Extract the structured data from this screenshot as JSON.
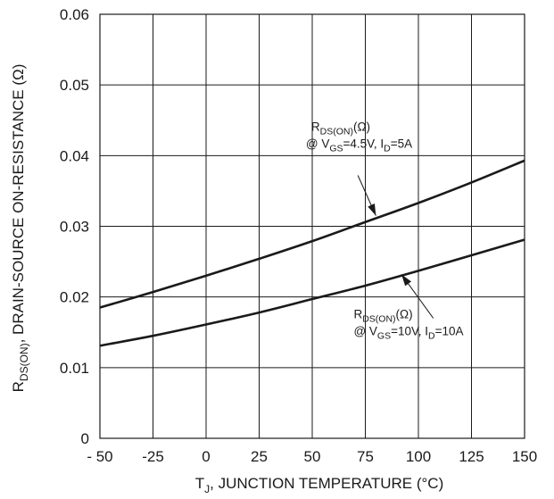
{
  "chart_data": {
    "type": "line",
    "x": [
      -50,
      -25,
      0,
      25,
      50,
      75,
      100,
      125,
      150
    ],
    "xlabel_main": "T",
    "xlabel_sub": "J",
    "xlabel_rest": ", JUNCTION TEMPERATURE (°C)",
    "ylabel_main": "R",
    "ylabel_sub": "DS(ON)",
    "ylabel_rest": ", DRAIN-SOURCE ON-RESISTANCE (Ω)",
    "xlim": [
      -50,
      150
    ],
    "ylim": [
      0,
      0.06
    ],
    "x_ticks": [
      -50,
      -25,
      0,
      25,
      50,
      75,
      100,
      125,
      150
    ],
    "x_tick_labels": [
      "- 50",
      "-25",
      "0",
      "25",
      "50",
      "75",
      "100",
      "125",
      "150"
    ],
    "y_ticks": [
      0,
      0.01,
      0.02,
      0.03,
      0.04,
      0.05,
      0.06
    ],
    "y_tick_labels": [
      "0",
      "0.01",
      "0.02",
      "0.03",
      "0.04",
      "0.05",
      "0.06"
    ],
    "grid": true,
    "series": [
      {
        "values": [
          0.0185,
          0.0207,
          0.023,
          0.0254,
          0.0279,
          0.0306,
          0.0333,
          0.0362,
          0.0393
        ]
      },
      {
        "values": [
          0.0131,
          0.0145,
          0.0161,
          0.0178,
          0.0197,
          0.0216,
          0.0237,
          0.0259,
          0.0281
        ]
      }
    ],
    "annotations": [
      {
        "line1_main": "R",
        "line1_sub": "DS(ON)",
        "line1_rest": "(Ω)",
        "line2_a": "@ V",
        "line2_sub1": "GS",
        "line2_b": "=4.5V, I",
        "line2_sub2": "D",
        "line2_c": "=5A",
        "points_to": {
          "x": 80,
          "y": 0.0315
        },
        "text_at": {
          "x": 47,
          "y": 0.0415
        },
        "leader_from": {
          "x": 71.5,
          "y": 0.0372
        }
      },
      {
        "line1_main": "R",
        "line1_sub": "DS(ON)",
        "line1_rest": "(Ω)",
        "line2_a": "@ V",
        "line2_sub1": "GS",
        "line2_b": "=10V, I",
        "line2_sub2": "D",
        "line2_c": "=10A",
        "points_to": {
          "x": 92,
          "y": 0.0232
        },
        "text_at": {
          "x": 67,
          "y": 0.015
        },
        "leader_from": {
          "x": 107,
          "y": 0.017
        }
      }
    ]
  }
}
